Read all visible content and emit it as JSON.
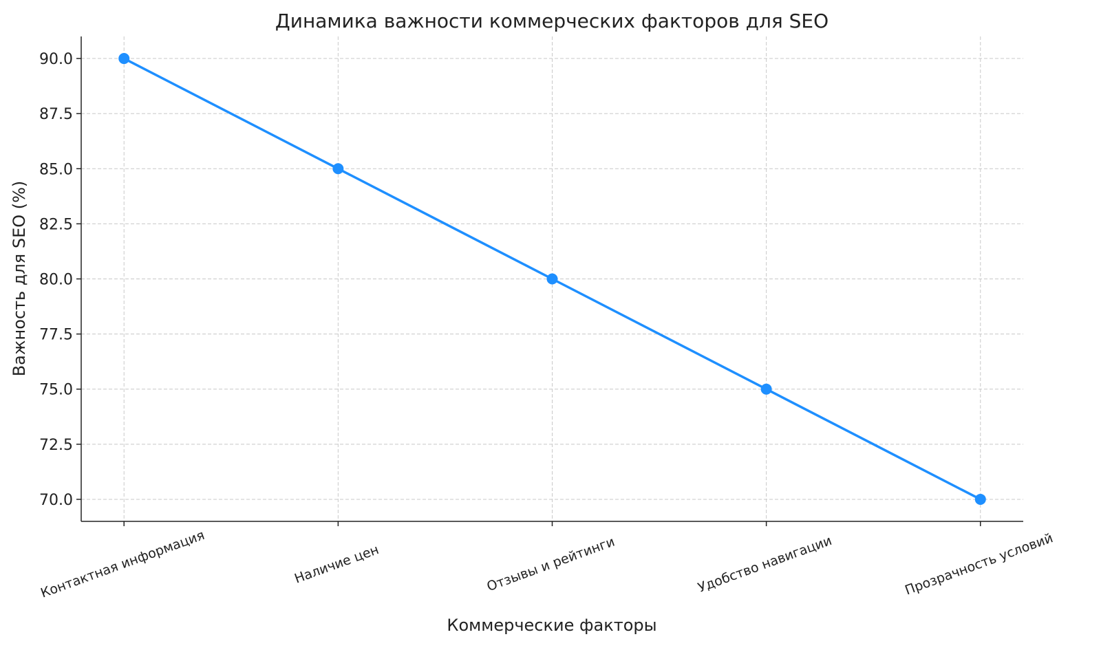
{
  "chart_data": {
    "type": "line",
    "title": "Динамика важности коммерческих факторов для SEO",
    "xlabel": "Коммерческие факторы",
    "ylabel": "Важность для SEO (%)",
    "categories": [
      "Контактная информация",
      "Наличие цен",
      "Отзывы и рейтинги",
      "Удобство навигации",
      "Прозрачность условий"
    ],
    "values": [
      90,
      85,
      80,
      75,
      70
    ],
    "ylim": [
      69,
      91
    ],
    "yticks": [
      70.0,
      72.5,
      75.0,
      77.5,
      80.0,
      82.5,
      85.0,
      87.5,
      90.0
    ],
    "ytick_labels": [
      "70.0",
      "72.5",
      "75.0",
      "77.5",
      "80.0",
      "82.5",
      "85.0",
      "87.5",
      "90.0"
    ],
    "grid": true,
    "marker": "circle",
    "color": "#1e8fff"
  }
}
